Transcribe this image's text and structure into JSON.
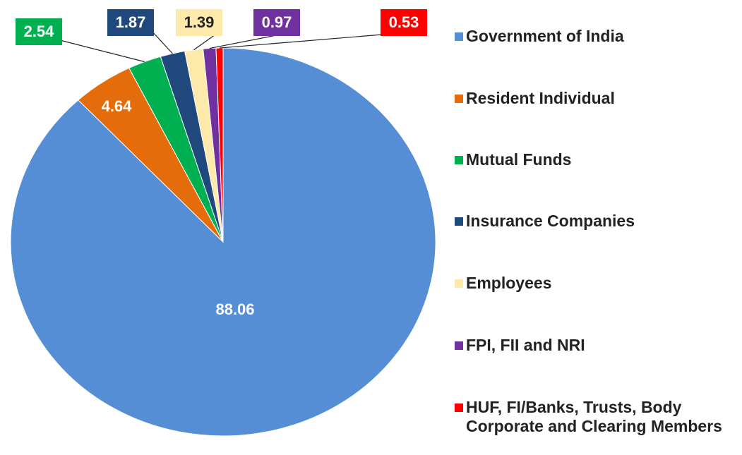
{
  "chart_data": {
    "type": "pie",
    "categories": [
      "Government of India",
      "Resident Individual",
      "Mutual Funds",
      "Insurance Companies",
      "Employees",
      "FPI, FII and NRI",
      "HUF, FI/Banks, Trusts, Body Corporate and Clearing Members"
    ],
    "values": [
      88.06,
      4.64,
      2.54,
      1.87,
      1.39,
      0.97,
      0.53
    ],
    "colors": [
      "#558ed5",
      "#e46c0a",
      "#00b050",
      "#1f497d",
      "#fde9a9",
      "#7030a0",
      "#ff0000"
    ],
    "legend": "right"
  }
}
